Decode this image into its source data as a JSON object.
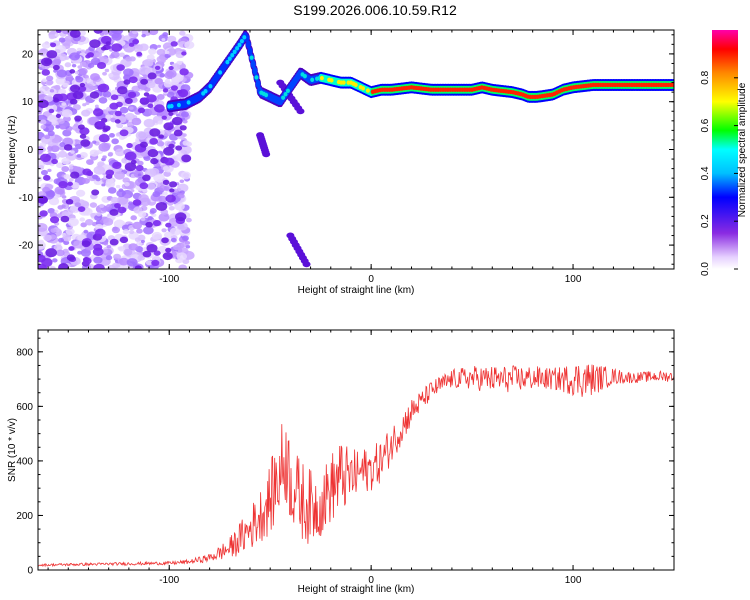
{
  "title": "S199.2026.006.10.59.R12",
  "chart_data": [
    {
      "type": "heatmap",
      "xlabel": "Height of straight line (km)",
      "ylabel": "Frequency (Hz)",
      "xlim": [
        -165,
        150
      ],
      "ylim": [
        -25,
        25
      ],
      "xticks": [
        -100,
        0,
        100
      ],
      "yticks": [
        -20,
        -10,
        0,
        10,
        20
      ],
      "ridge": {
        "x": [
          -100,
          -92,
          -85,
          -80,
          -75,
          -70,
          -65,
          -62,
          -55,
          -50,
          -45,
          -40,
          -35,
          -30,
          -25,
          -20,
          -15,
          -10,
          -5,
          0,
          5,
          10,
          20,
          30,
          40,
          50,
          55,
          60,
          70,
          75,
          78,
          82,
          90,
          95,
          100,
          110,
          120,
          130,
          140,
          150
        ],
        "y": [
          9,
          9.5,
          11,
          13,
          16,
          19,
          22,
          24,
          12,
          11,
          10,
          13,
          16,
          14.5,
          15,
          14.5,
          14,
          14,
          13,
          12,
          12.5,
          12.5,
          13,
          12.5,
          12.5,
          12.5,
          13,
          12.5,
          12,
          11.5,
          11,
          11,
          11.5,
          12.5,
          13,
          13.5,
          13.5,
          13.5,
          13.5,
          13.5
        ]
      },
      "colorbar": {
        "label": "Normalized spectral amplitude",
        "ticks": [
          "0.0",
          "0.2",
          "0.4",
          "0.6",
          "0.8"
        ],
        "range": [
          0,
          1
        ]
      }
    },
    {
      "type": "line",
      "xlabel": "Height of straight line (km)",
      "ylabel": "SNR (10 * v/v)",
      "xlim": [
        -165,
        150
      ],
      "ylim": [
        0,
        880
      ],
      "xticks": [
        -100,
        0,
        100
      ],
      "yticks": [
        0,
        200,
        400,
        600,
        800
      ],
      "series": [
        {
          "name": "SNR",
          "color": "#ee3333",
          "x": [
            -165,
            -150,
            -130,
            -110,
            -100,
            -90,
            -80,
            -70,
            -60,
            -55,
            -50,
            -45,
            -42,
            -40,
            -35,
            -30,
            -25,
            -20,
            -15,
            -10,
            -5,
            0,
            5,
            10,
            15,
            20,
            25,
            30,
            40,
            50,
            60,
            70,
            80,
            90,
            100,
            105,
            110,
            120,
            130,
            140,
            150
          ],
          "values": [
            18,
            20,
            22,
            24,
            25,
            30,
            45,
            80,
            150,
            200,
            260,
            360,
            420,
            320,
            260,
            230,
            240,
            300,
            340,
            340,
            360,
            370,
            400,
            460,
            520,
            580,
            620,
            660,
            700,
            705,
            700,
            700,
            705,
            700,
            700,
            700,
            700,
            710,
            705,
            710,
            710
          ],
          "noise": [
            4,
            5,
            5,
            6,
            6,
            8,
            15,
            40,
            80,
            100,
            130,
            170,
            180,
            150,
            150,
            140,
            120,
            130,
            140,
            100,
            90,
            80,
            80,
            70,
            60,
            50,
            40,
            35,
            35,
            45,
            50,
            50,
            45,
            40,
            60,
            70,
            60,
            30,
            20,
            20,
            20
          ]
        }
      ]
    }
  ]
}
